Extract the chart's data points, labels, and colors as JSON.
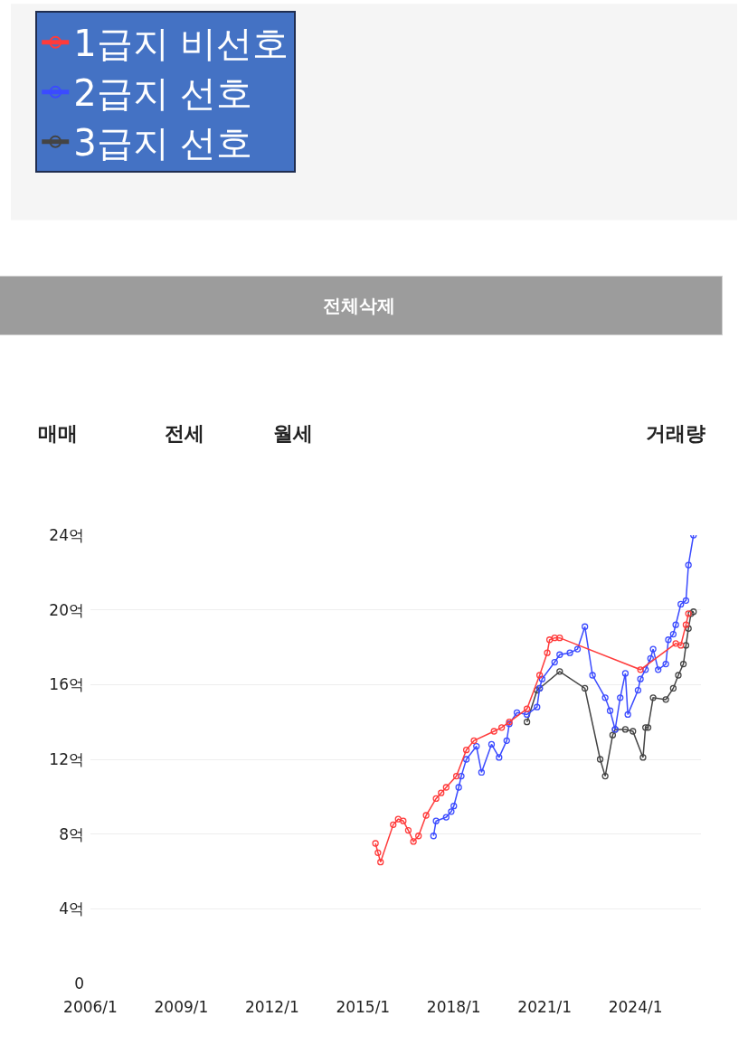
{
  "chart_data": {
    "type": "line",
    "marker": "circle",
    "grid": "y",
    "legend": "top left",
    "annotations": [
      "전체삭제",
      "매매",
      "전세",
      "월세",
      "거래량"
    ],
    "xlim": [
      "2006-01",
      "2026-03"
    ],
    "xticks": [
      {
        "value": "2006-01",
        "label": "2006/1"
      },
      {
        "value": "2009-01",
        "label": "2009/1"
      },
      {
        "value": "2012-01",
        "label": "2012/1"
      },
      {
        "value": "2015-01",
        "label": "2015/1"
      },
      {
        "value": "2018-01",
        "label": "2018/1"
      },
      {
        "value": "2021-01",
        "label": "2021/1"
      },
      {
        "value": "2024-01",
        "label": "2024/1"
      }
    ],
    "ylim": [
      0,
      24
    ],
    "yticks": [
      0,
      {
        "value": 4,
        "label": "4억"
      },
      {
        "value": 8,
        "label": "8억"
      },
      {
        "value": 12,
        "label": "12억"
      },
      {
        "value": 16,
        "label": "16억"
      },
      {
        "value": 20,
        "label": "20억"
      },
      {
        "value": 24,
        "label": "24억"
      }
    ],
    "series": [
      {
        "name": "1급지 비선호",
        "color": "#ff3b3b",
        "x": [
          "2015-06",
          "2015-07",
          "2015-08",
          "2016-01",
          "2016-03",
          "2016-05",
          "2016-07",
          "2016-09",
          "2016-11",
          "2017-02",
          "2017-06",
          "2017-08",
          "2017-10",
          "2018-02",
          "2018-06",
          "2018-09",
          "2019-05",
          "2019-08",
          "2019-11",
          "2020-06",
          "2020-11",
          "2021-02",
          "2021-03",
          "2021-05",
          "2021-07",
          "2024-03",
          "2025-05",
          "2025-07",
          "2025-09",
          "2025-10"
        ],
        "values": [
          7.5,
          7.0,
          6.5,
          8.5,
          8.8,
          8.7,
          8.2,
          7.6,
          7.9,
          9.0,
          9.9,
          10.2,
          10.5,
          11.1,
          12.5,
          13.0,
          13.5,
          13.7,
          14.0,
          14.7,
          16.5,
          17.7,
          18.4,
          18.5,
          18.5,
          16.8,
          18.2,
          18.1,
          19.2,
          19.8
        ]
      },
      {
        "name": "2급지 선호",
        "color": "#3b4bff",
        "x": [
          "2017-05",
          "2017-06",
          "2017-10",
          "2017-12",
          "2018-01",
          "2018-03",
          "2018-04",
          "2018-06",
          "2018-10",
          "2018-12",
          "2019-04",
          "2019-07",
          "2019-10",
          "2019-11",
          "2020-02",
          "2020-06",
          "2020-10",
          "2020-11",
          "2020-12",
          "2021-05",
          "2021-07",
          "2021-11",
          "2022-02",
          "2022-05",
          "2022-08",
          "2023-01",
          "2023-03",
          "2023-05",
          "2023-07",
          "2023-09",
          "2023-10",
          "2024-02",
          "2024-03",
          "2024-05",
          "2024-07",
          "2024-08",
          "2024-10",
          "2025-01",
          "2025-02",
          "2025-04",
          "2025-05",
          "2025-07",
          "2025-09",
          "2025-10",
          "2025-12"
        ],
        "values": [
          7.9,
          8.7,
          8.9,
          9.2,
          9.5,
          10.5,
          11.1,
          12.0,
          12.7,
          11.3,
          12.8,
          12.1,
          13.0,
          13.9,
          14.5,
          14.4,
          14.8,
          15.8,
          16.3,
          17.2,
          17.6,
          17.7,
          17.9,
          19.1,
          16.5,
          15.3,
          14.6,
          13.6,
          15.3,
          16.6,
          14.4,
          15.7,
          16.3,
          16.8,
          17.4,
          17.9,
          16.8,
          17.1,
          18.4,
          18.7,
          19.2,
          20.3,
          20.5,
          22.4,
          24.0
        ]
      },
      {
        "name": "3급지 선호",
        "color": "#444444",
        "x": [
          "2020-06",
          "2020-10",
          "2020-11",
          "2021-07",
          "2022-05",
          "2022-11",
          "2023-01",
          "2023-04",
          "2023-05",
          "2023-09",
          "2023-12",
          "2024-04",
          "2024-05",
          "2024-06",
          "2024-08",
          "2025-01",
          "2025-04",
          "2025-06",
          "2025-08",
          "2025-09",
          "2025-10",
          "2025-11",
          "2025-12"
        ],
        "values": [
          14.0,
          15.7,
          15.8,
          16.7,
          15.8,
          12.0,
          11.1,
          13.3,
          13.6,
          13.6,
          13.5,
          12.1,
          13.7,
          13.7,
          15.3,
          15.2,
          15.8,
          16.5,
          17.1,
          18.1,
          19.0,
          19.8,
          19.9
        ]
      }
    ]
  }
}
